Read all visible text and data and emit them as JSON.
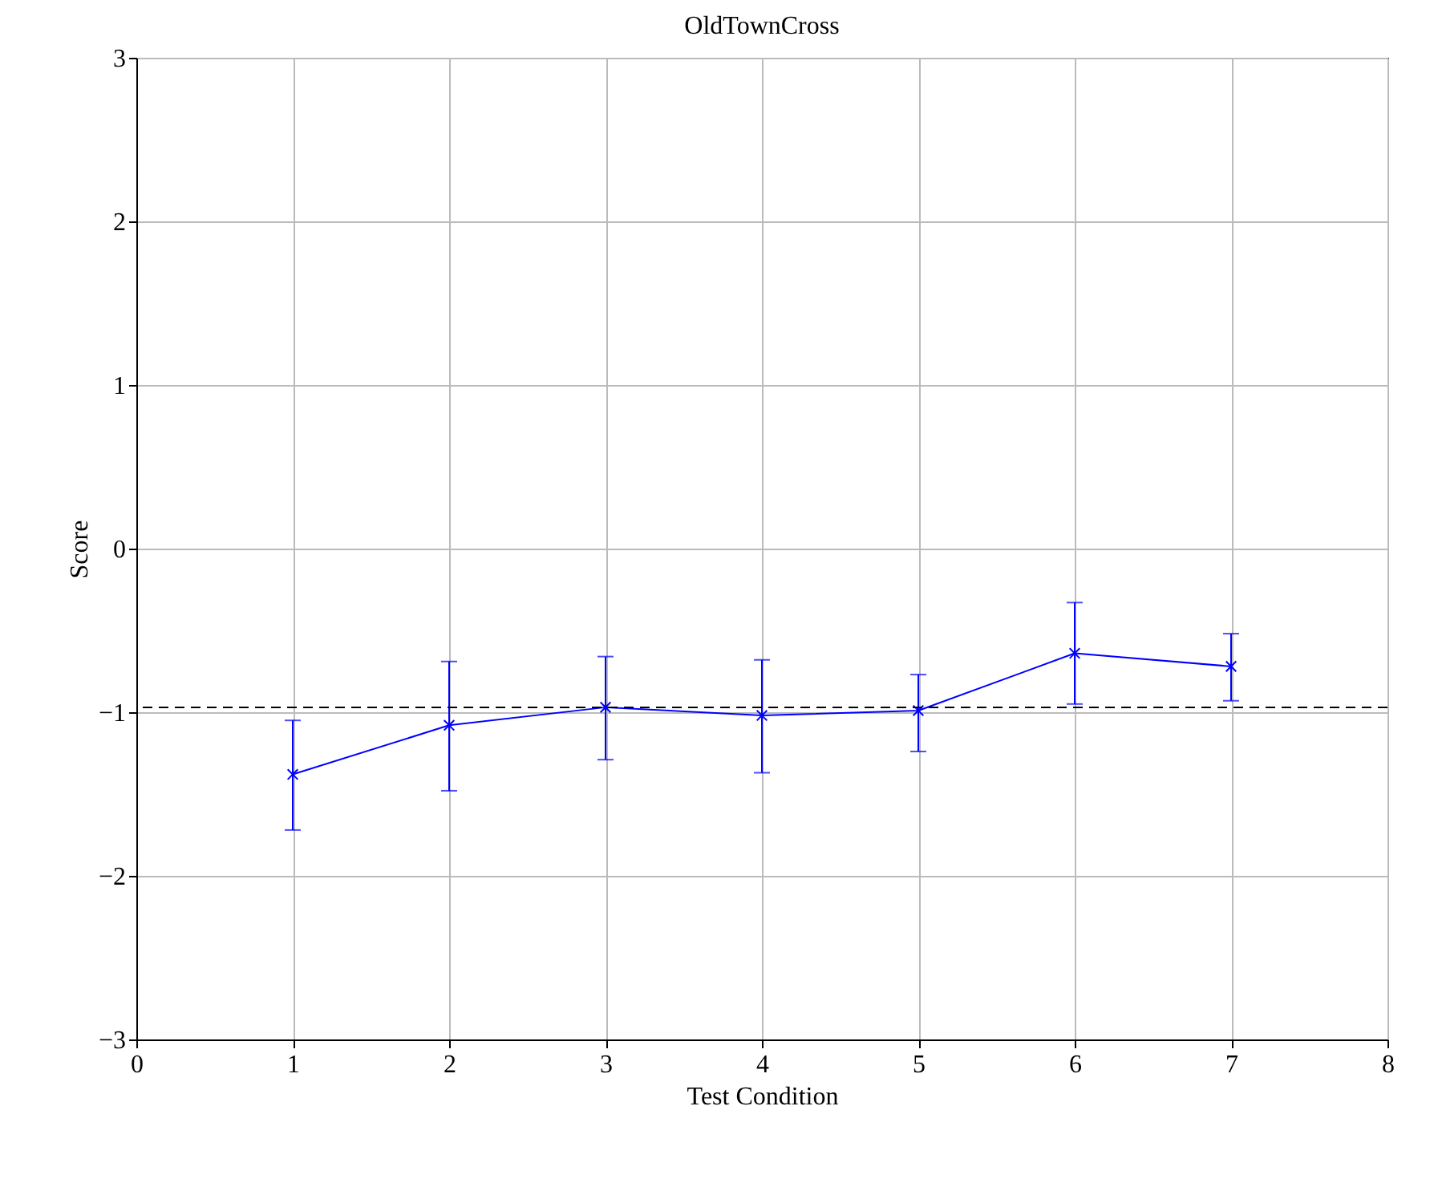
{
  "chart_data": {
    "type": "line",
    "title": "OldTownCross",
    "xlabel": "Test Condition",
    "ylabel": "Score",
    "x": [
      1,
      2,
      3,
      4,
      5,
      6,
      7
    ],
    "series": [
      {
        "color": "#0000ff",
        "values": [
          -1.38,
          -1.08,
          -0.97,
          -1.02,
          -0.99,
          -0.64,
          -0.72
        ],
        "errors": [
          [
            -1.72,
            -1.05
          ],
          [
            -1.48,
            -0.69
          ],
          [
            -1.29,
            -0.66
          ],
          [
            -1.37,
            -0.68
          ],
          [
            -1.24,
            -0.77
          ],
          [
            -0.95,
            -0.33
          ],
          [
            -0.93,
            -0.52
          ]
        ]
      }
    ],
    "xlim": [
      0,
      8
    ],
    "xticks": [
      0,
      1,
      2,
      3,
      4,
      5,
      6,
      7,
      8
    ],
    "ylim": [
      -3,
      3
    ],
    "yticks": [
      -3,
      -2,
      -1,
      0,
      1,
      2,
      3
    ],
    "ref_lines": [
      {
        "axis": "y",
        "value": -0.97,
        "color": "#000000",
        "line_style": "dashed"
      }
    ],
    "grid": true,
    "marker": "cross",
    "line_style": "solid"
  }
}
